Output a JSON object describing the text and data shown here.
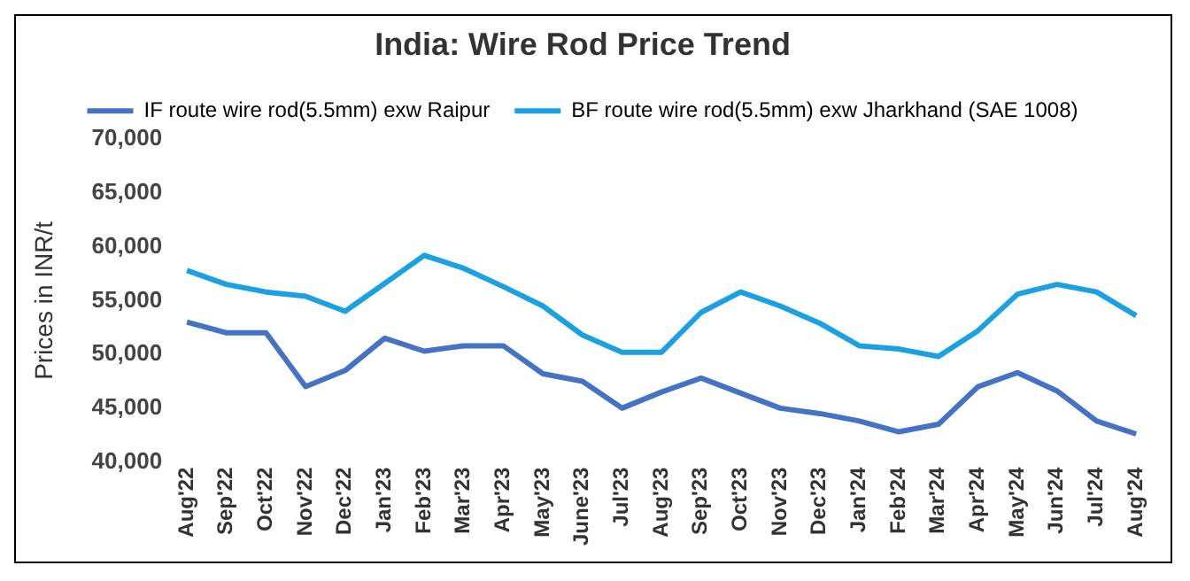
{
  "chart_data": {
    "type": "line",
    "title": "India: Wire Rod Price Trend",
    "ylabel": "Prices in INR/t",
    "categories": [
      "Aug'22",
      "Sep'22",
      "Oct'22",
      "Nov'22",
      "Dec'22",
      "Jan'23",
      "Feb'23",
      "Mar'23",
      "Apr'23",
      "May'23",
      "June'23",
      "Jul'23",
      "Aug'23",
      "Sep'23",
      "Oct'23",
      "Nov'23",
      "Dec'23",
      "Jan'24",
      "Feb'24",
      "Mar'24",
      "Apr'24",
      "May'24",
      "Jun'24",
      "Jul'24",
      "Aug'24"
    ],
    "series": [
      {
        "name": "IF route wire rod(5.5mm) exw Raipur",
        "color": "#4472c4",
        "values": [
          53000,
          52000,
          52000,
          47000,
          48500,
          51500,
          50300,
          50800,
          50800,
          48200,
          47500,
          45000,
          46500,
          47800,
          46400,
          45000,
          44500,
          43800,
          42800,
          43500,
          47000,
          48300,
          46600,
          43800,
          42600
        ]
      },
      {
        "name": "BF route wire rod(5.5mm) exw Jharkhand (SAE 1008)",
        "color": "#1ba1e2",
        "values": [
          57800,
          56500,
          55800,
          55400,
          54000,
          56600,
          59200,
          58000,
          56300,
          54500,
          51800,
          50200,
          50200,
          53900,
          55800,
          54500,
          52900,
          50800,
          50500,
          49800,
          52200,
          55600,
          56500,
          55800,
          53600
        ]
      }
    ],
    "ylim": [
      40000,
      70000
    ],
    "yticks": [
      {
        "value": 40000,
        "label": "40,000"
      },
      {
        "value": 45000,
        "label": "45,000"
      },
      {
        "value": 50000,
        "label": "50,000"
      },
      {
        "value": 55000,
        "label": "55,000"
      },
      {
        "value": 60000,
        "label": "60,000"
      },
      {
        "value": 65000,
        "label": "65,000"
      },
      {
        "value": 70000,
        "label": "70,000"
      }
    ],
    "grid": false,
    "legend": "top",
    "marker": "none",
    "line_style": "solid"
  }
}
